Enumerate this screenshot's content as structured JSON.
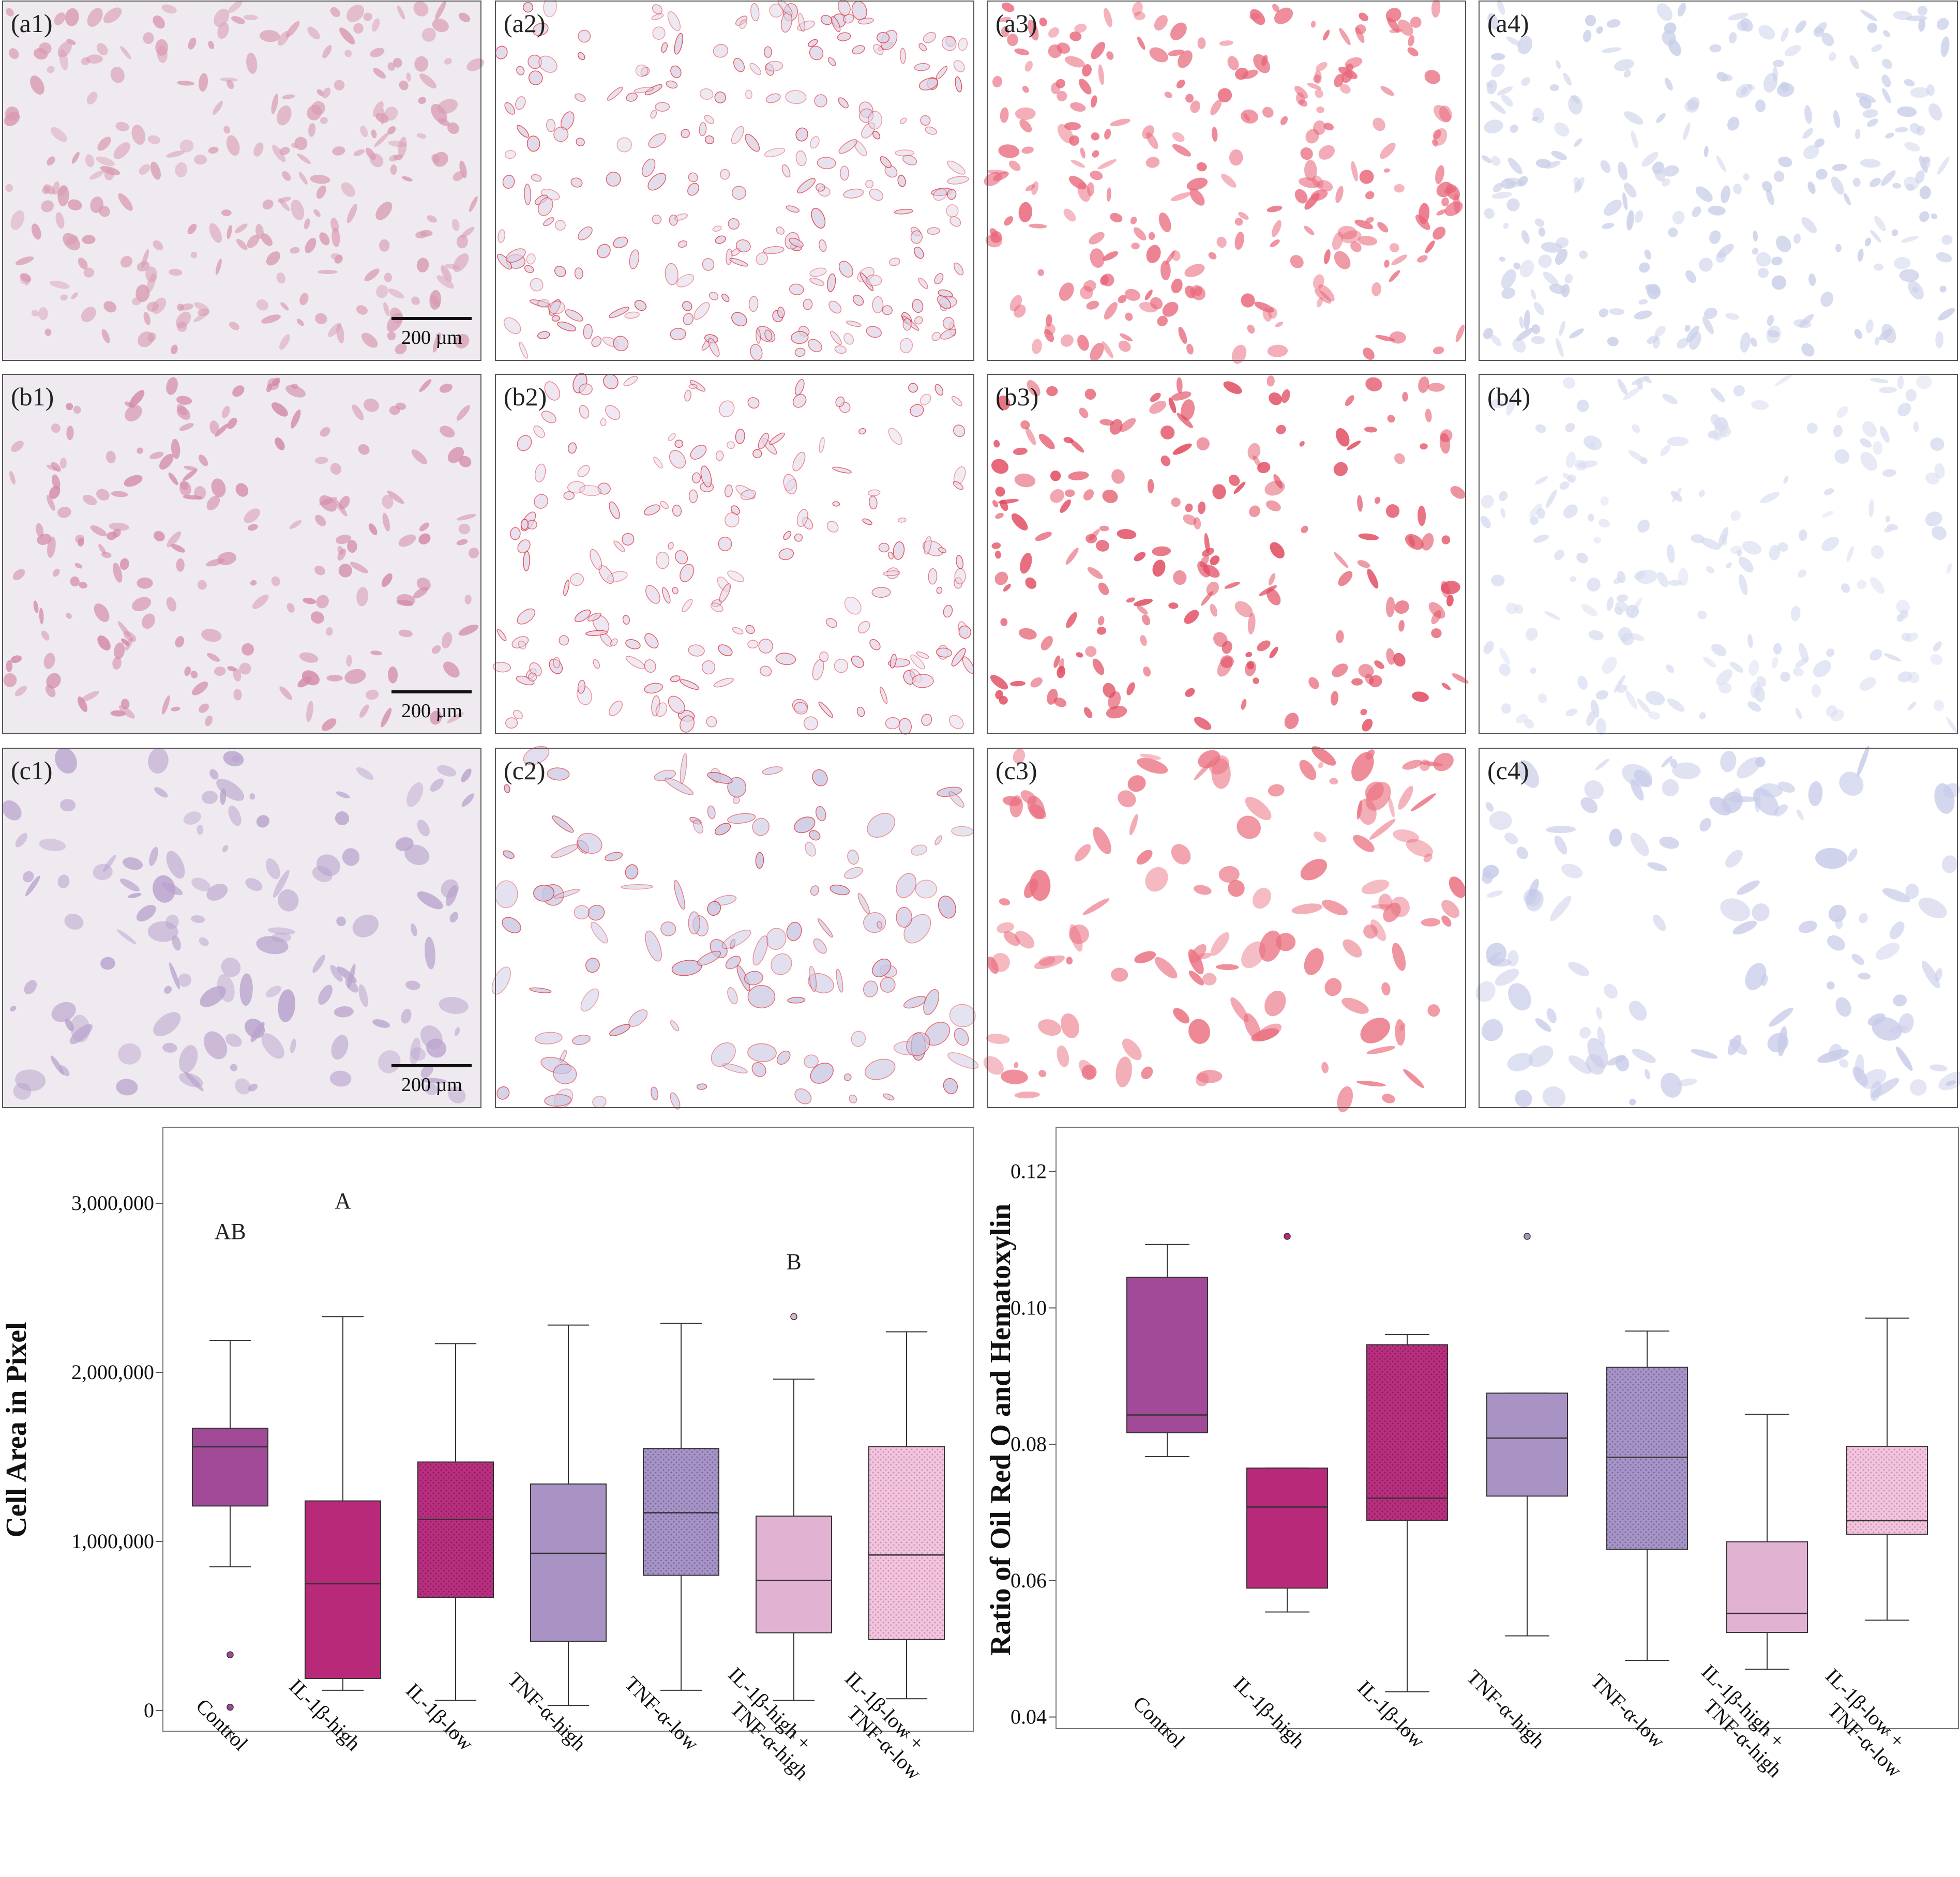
{
  "panels": {
    "rows": [
      [
        "(a1)",
        "(a2)",
        "(a3)",
        "(a4)"
      ],
      [
        "(b1)",
        "(b2)",
        "(b3)",
        "(b4)"
      ],
      [
        "(c1)",
        "(c2)",
        "(c3)",
        "(c4)"
      ]
    ],
    "scale_bar_label": "200 µm"
  },
  "colors": {
    "control": "#a04a98",
    "il1b_high": "#b8297a",
    "il1b_low": "#b82f80",
    "tnf_high": "#a992c4",
    "tnf_low": "#a794c6",
    "il1b_high_tnf_high": "#e2b2d2",
    "il1b_low_tnf_low": "#f2c4de"
  },
  "chart_data": [
    {
      "type": "box",
      "title": "",
      "ylabel": "Cell Area in Pixel",
      "ylim": [
        -70000,
        3450000
      ],
      "yticks": [
        0,
        1000000,
        2000000,
        3000000
      ],
      "ytick_labels": [
        "0",
        "1,000,000",
        "2,000,000",
        "3,000,000"
      ],
      "categories": [
        "Control",
        "IL-1β-high",
        "IL-1β-low",
        "TNF-α-high",
        "TNF-α-low",
        "IL-1β-high + TNF-α-high",
        "IL-1β-low + TNF-α-low"
      ],
      "tick_lines": [
        [
          "Control"
        ],
        [
          "IL-1β-high"
        ],
        [
          "IL-1β-low"
        ],
        [
          "TNF-α-high"
        ],
        [
          "TNF-α-low"
        ],
        [
          "IL-1β-high +",
          "TNF-α-high"
        ],
        [
          "IL-1β-low +",
          "TNF-α-low"
        ]
      ],
      "series": [
        {
          "name": "Control",
          "min": 850000,
          "q1": 1210000,
          "median": 1560000,
          "q3": 1670000,
          "max": 2190000,
          "outliers": [
            330000,
            20000
          ]
        },
        {
          "name": "IL-1β-high",
          "min": 120000,
          "q1": 190000,
          "median": 750000,
          "q3": 1240000,
          "max": 2330000,
          "outliers": []
        },
        {
          "name": "IL-1β-low",
          "min": 60000,
          "q1": 670000,
          "median": 1130000,
          "q3": 1470000,
          "max": 2170000,
          "outliers": []
        },
        {
          "name": "TNF-α-high",
          "min": 30000,
          "q1": 410000,
          "median": 930000,
          "q3": 1340000,
          "max": 2280000,
          "outliers": []
        },
        {
          "name": "TNF-α-low",
          "min": 120000,
          "q1": 800000,
          "median": 1170000,
          "q3": 1550000,
          "max": 2290000,
          "outliers": []
        },
        {
          "name": "IL-1β-high + TNF-α-high",
          "min": 60000,
          "q1": 460000,
          "median": 770000,
          "q3": 1150000,
          "max": 1960000,
          "outliers": [
            2330000
          ]
        },
        {
          "name": "IL-1β-low + TNF-α-low",
          "min": 70000,
          "q1": 420000,
          "median": 920000,
          "q3": 1560000,
          "max": 2240000,
          "outliers": []
        }
      ],
      "annotations": [
        {
          "category": "Control",
          "text": "AB",
          "y": 2790000
        },
        {
          "category": "IL-1β-high",
          "text": "A",
          "y": 2970000
        },
        {
          "category": "IL-1β-high + TNF-α-high",
          "text": "B",
          "y": 2610000
        }
      ]
    },
    {
      "type": "box",
      "title": "",
      "ylabel": "Ratio of Oil Red O and Hematoxylin",
      "ylim": [
        0.0383,
        0.1265
      ],
      "yticks": [
        0.04,
        0.06,
        0.08,
        0.1,
        0.12
      ],
      "ytick_labels": [
        "0.04",
        "0.06",
        "0.08",
        "0.10",
        "0.12"
      ],
      "categories": [
        "Control",
        "IL-1β-high",
        "IL-1β-low",
        "TNF-α-high",
        "TNF-α-low",
        "IL-1β-high + TNF-α-high",
        "IL-1β-low + TNF-α-low"
      ],
      "tick_lines": [
        [
          "Control"
        ],
        [
          "IL-1β-high"
        ],
        [
          "IL-1β-low"
        ],
        [
          "TNF-α-high"
        ],
        [
          "TNF-α-low"
        ],
        [
          "IL-1β-high +",
          "TNF-α-high"
        ],
        [
          "IL-1β-low +",
          "TNF-α-low"
        ]
      ],
      "series": [
        {
          "name": "Control",
          "min": 0.0782,
          "q1": 0.0817,
          "median": 0.0843,
          "q3": 0.1045,
          "max": 0.1093,
          "outliers": []
        },
        {
          "name": "IL-1β-high",
          "min": 0.0554,
          "q1": 0.0589,
          "median": 0.0708,
          "q3": 0.0765,
          "max": 0.0765,
          "outliers": [
            0.1105
          ]
        },
        {
          "name": "IL-1β-low",
          "min": 0.0437,
          "q1": 0.0688,
          "median": 0.0721,
          "q3": 0.0946,
          "max": 0.0961,
          "outliers": []
        },
        {
          "name": "TNF-α-high",
          "min": 0.0519,
          "q1": 0.0724,
          "median": 0.0809,
          "q3": 0.0875,
          "max": 0.0875,
          "outliers": [
            0.1105
          ]
        },
        {
          "name": "TNF-α-low",
          "min": 0.0483,
          "q1": 0.0646,
          "median": 0.0781,
          "q3": 0.0913,
          "max": 0.0966,
          "outliers": []
        },
        {
          "name": "IL-1β-high + TNF-α-high",
          "min": 0.047,
          "q1": 0.0524,
          "median": 0.0552,
          "q3": 0.0657,
          "max": 0.0844,
          "outliers": []
        },
        {
          "name": "IL-1β-low + TNF-α-low",
          "min": 0.0542,
          "q1": 0.0668,
          "median": 0.0688,
          "q3": 0.0797,
          "max": 0.0985,
          "outliers": []
        }
      ],
      "annotations": []
    }
  ]
}
